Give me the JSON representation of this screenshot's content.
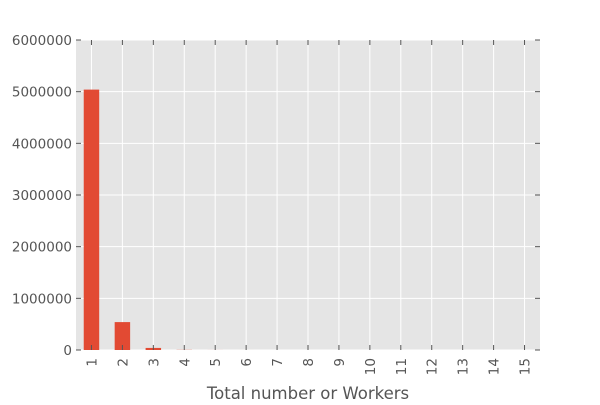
{
  "chart_data": {
    "type": "bar",
    "categories": [
      "1",
      "2",
      "3",
      "4",
      "5",
      "6",
      "7",
      "8",
      "9",
      "10",
      "11",
      "12",
      "13",
      "14",
      "15"
    ],
    "values": [
      5040000,
      540000,
      40000,
      3000,
      600,
      150,
      50,
      20,
      10,
      5,
      3,
      2,
      1,
      1,
      1
    ],
    "xlabel": "Total number or Workers",
    "ylabel": "",
    "ylim": [
      0,
      6000000
    ],
    "yticks": [
      "0",
      "1000000",
      "2000000",
      "3000000",
      "4000000",
      "5000000",
      "6000000"
    ],
    "grid": true,
    "legend": "none",
    "colors": {
      "bar": "#E24A33",
      "background": "#E5E5E5",
      "grid": "#FFFFFF",
      "text": "#555555"
    }
  }
}
